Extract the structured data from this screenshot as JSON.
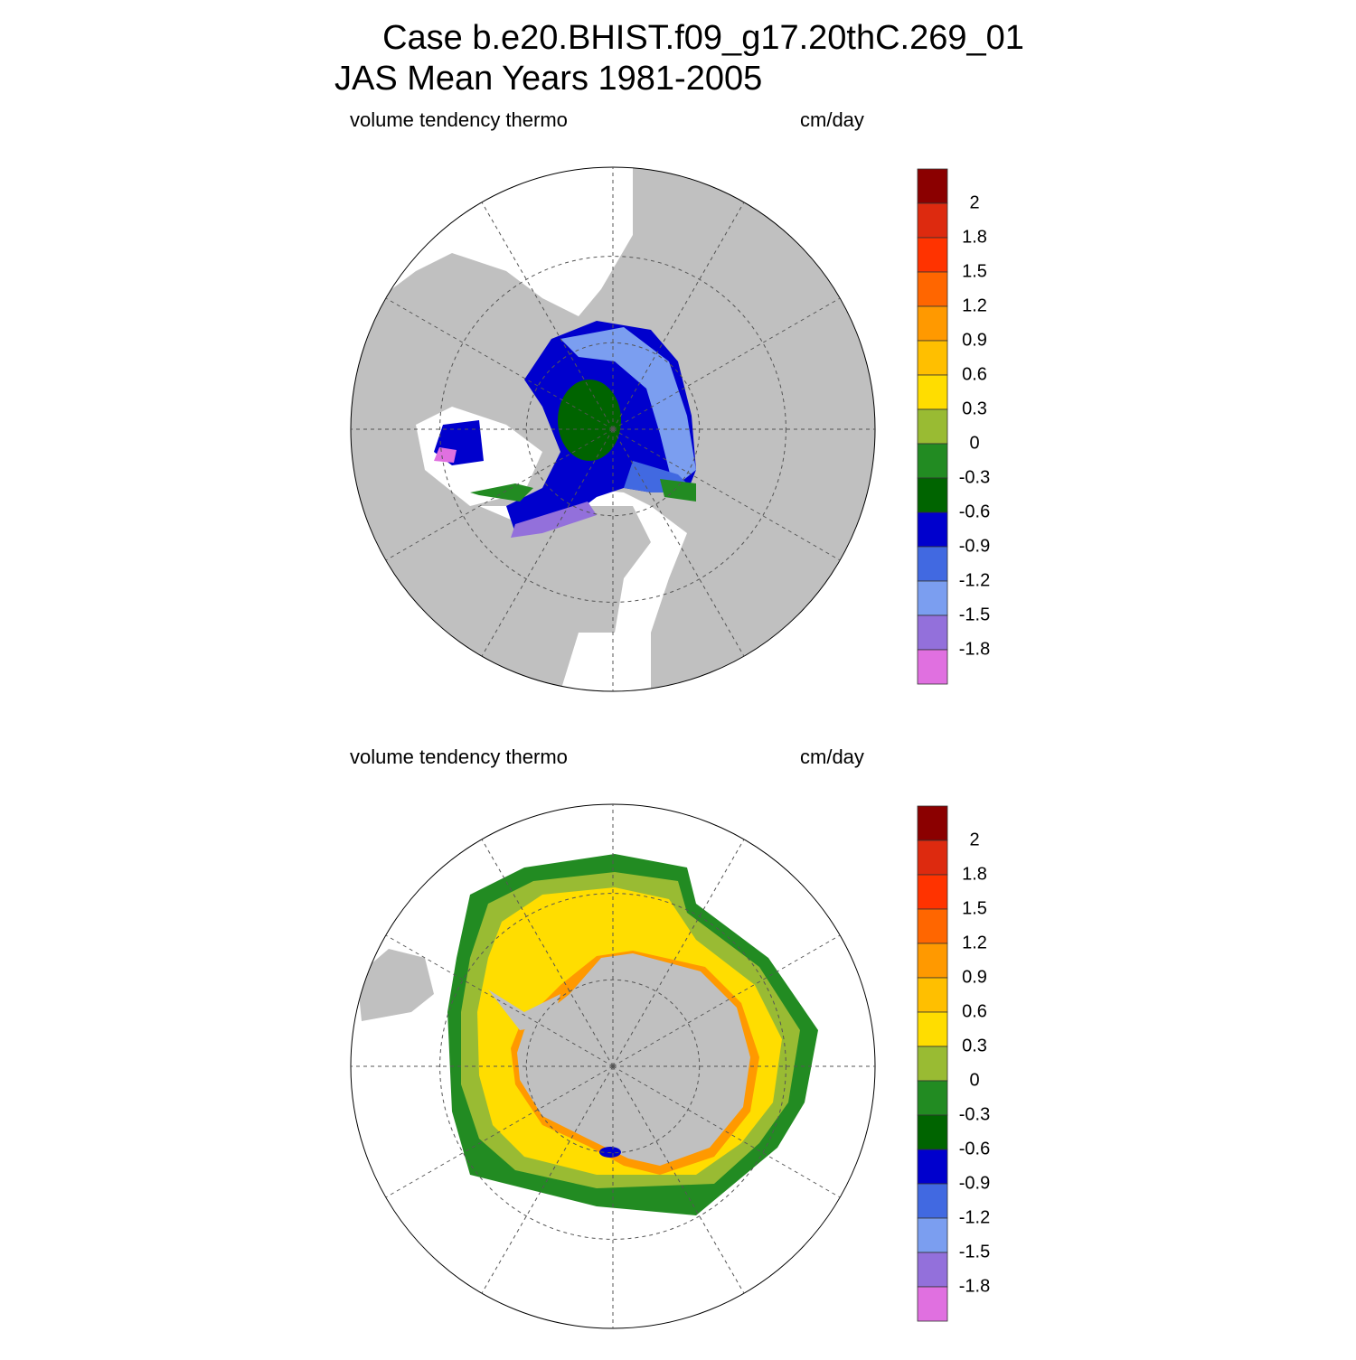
{
  "header": {
    "title_line1": "Case b.e20.BHIST.f09_g17.20thC.269_01",
    "title_line2": "JAS Mean   Years 1981-2005"
  },
  "colorbar_colors": [
    "#8b0000",
    "#dd2a0f",
    "#ff3300",
    "#ff6600",
    "#ff9900",
    "#ffbf00",
    "#ffdd00",
    "#99bb33",
    "#228b22",
    "#006400",
    "#0000cd",
    "#4169e1",
    "#7b9ef0",
    "#9370db",
    "#e070e0"
  ],
  "panels": [
    {
      "left_label": "volume tendency thermo",
      "right_label": "cm/day",
      "levels": [
        2,
        1.8,
        1.5,
        1.2,
        0.9,
        0.6,
        0.3,
        0,
        -0.3,
        -0.6,
        -0.9,
        -1.2,
        -1.5,
        -1.8
      ]
    },
    {
      "left_label": "volume tendency thermo",
      "right_label": "cm/day",
      "levels": [
        2,
        1.8,
        1.5,
        1.2,
        0.9,
        0.6,
        0.3,
        0,
        -0.3,
        -0.6,
        -0.9,
        -1.2,
        -1.5,
        -1.8
      ]
    }
  ]
}
